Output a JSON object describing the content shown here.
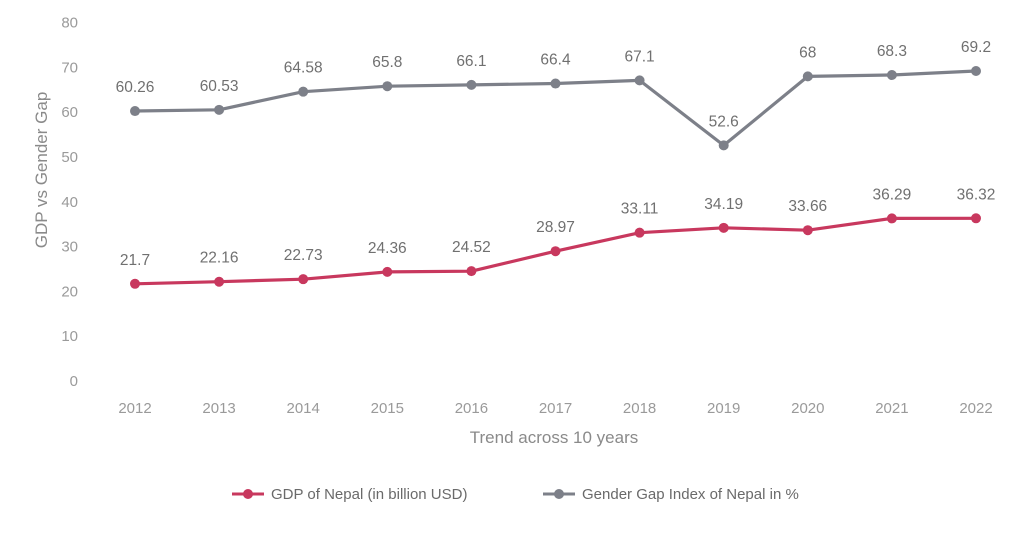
{
  "chart_data": {
    "type": "line",
    "xlabel": "Trend across 10 years",
    "ylabel": "GDP vs Gender Gap",
    "categories": [
      "2012",
      "2013",
      "2014",
      "2015",
      "2016",
      "2017",
      "2018",
      "2019",
      "2020",
      "2021",
      "2022"
    ],
    "ylim": [
      0,
      80
    ],
    "yticks": [
      0,
      10,
      20,
      30,
      40,
      50,
      60,
      70,
      80
    ],
    "grid": false,
    "legend_position": "bottom",
    "series": [
      {
        "name": "GDP of Nepal (in billion USD)",
        "color": "#c8385e",
        "values": [
          21.7,
          22.16,
          22.73,
          24.36,
          24.52,
          28.97,
          33.11,
          34.19,
          33.66,
          36.29,
          36.32
        ],
        "labels": [
          "21.7",
          "22.16",
          "22.73",
          "24.36",
          "24.52",
          "28.97",
          "33.11",
          "34.19",
          "33.66",
          "36.29",
          "36.32"
        ]
      },
      {
        "name": "Gender Gap Index of Nepal in %",
        "color": "#7d8089",
        "values": [
          60.26,
          60.53,
          64.58,
          65.8,
          66.1,
          66.4,
          67.1,
          52.6,
          68,
          68.3,
          69.2
        ],
        "labels": [
          "60.26",
          "60.53",
          "64.58",
          "65.8",
          "66.1",
          "66.4",
          "67.1",
          "52.6",
          "68",
          "68.3",
          "69.2"
        ]
      }
    ]
  }
}
